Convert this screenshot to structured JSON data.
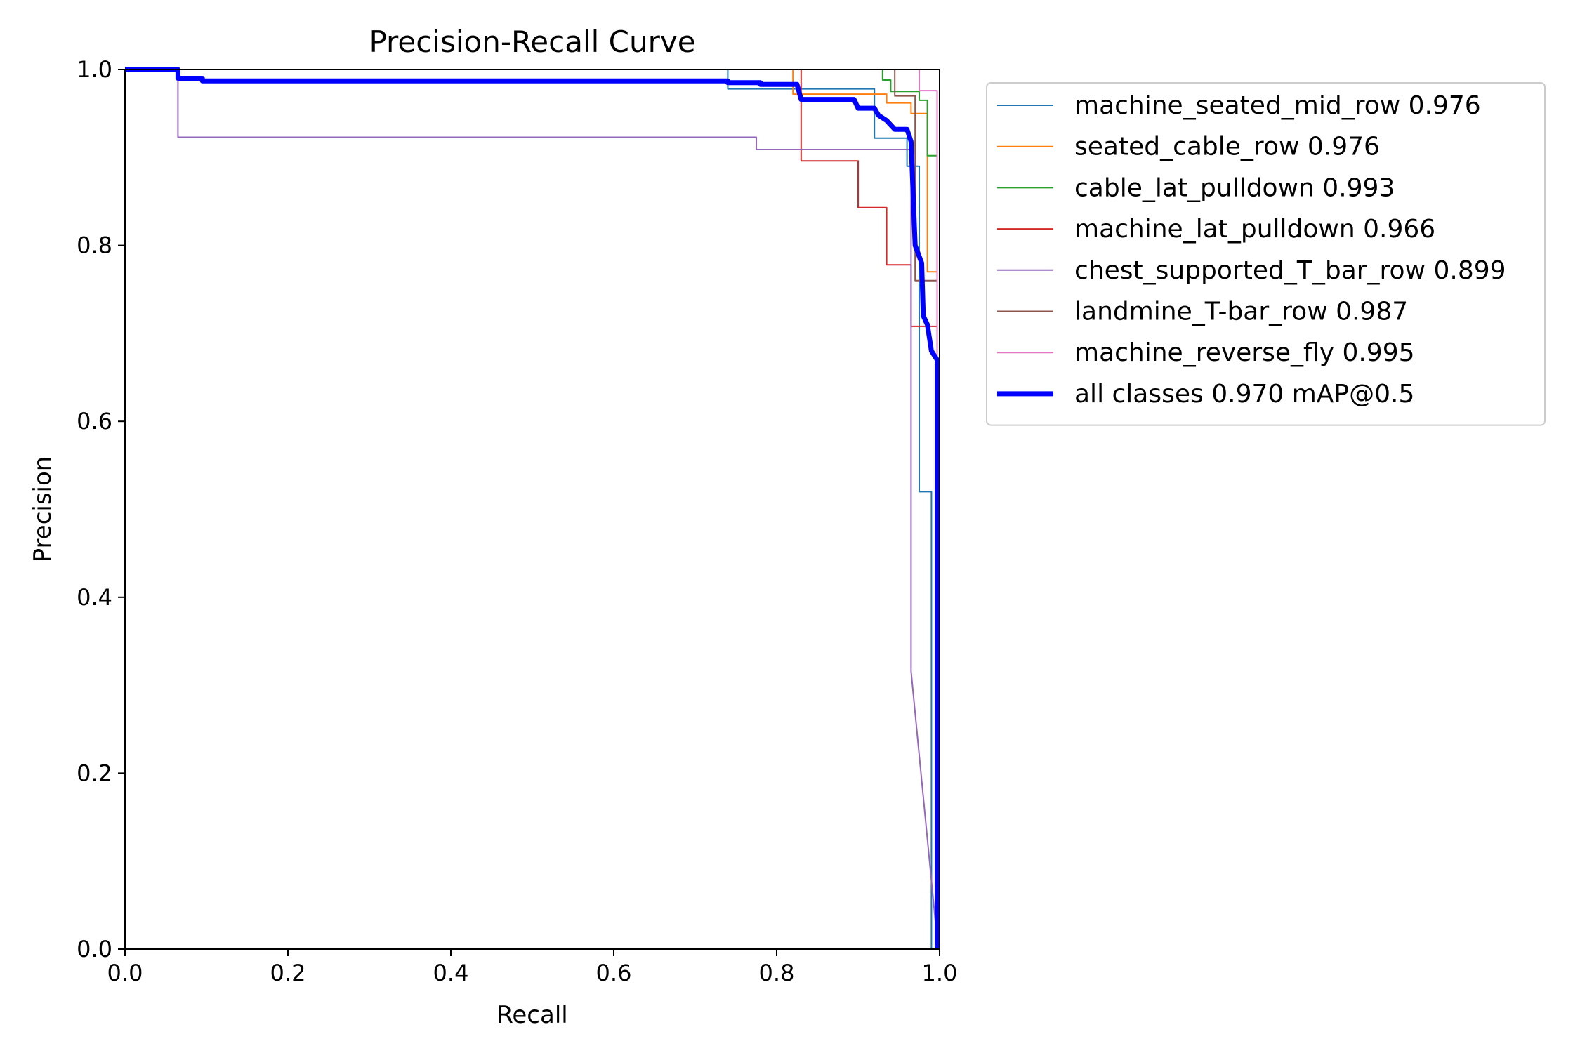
{
  "chart_data": {
    "type": "line",
    "title": "Precision-Recall Curve",
    "xlabel": "Recall",
    "ylabel": "Precision",
    "xlim": [
      0,
      1
    ],
    "ylim": [
      0,
      1
    ],
    "xticks": [
      "0.0",
      "0.2",
      "0.4",
      "0.6",
      "0.8",
      "1.0"
    ],
    "yticks": [
      "0.0",
      "0.2",
      "0.4",
      "0.6",
      "0.8",
      "1.0"
    ],
    "grid": false,
    "legend_position": "outside-top-right",
    "series": [
      {
        "name": "machine_seated_mid_row 0.976",
        "color": "#1f77b4",
        "width": "thin",
        "points": [
          [
            0,
            1
          ],
          [
            0.74,
            1
          ],
          [
            0.74,
            0.978
          ],
          [
            0.92,
            0.978
          ],
          [
            0.92,
            0.922
          ],
          [
            0.96,
            0.922
          ],
          [
            0.96,
            0.89
          ],
          [
            0.975,
            0.89
          ],
          [
            0.975,
            0.52
          ],
          [
            0.99,
            0.52
          ],
          [
            0.99,
            0.0
          ]
        ]
      },
      {
        "name": "seated_cable_row 0.976",
        "color": "#ff7f0e",
        "width": "thin",
        "points": [
          [
            0,
            1
          ],
          [
            0.82,
            1
          ],
          [
            0.82,
            0.972
          ],
          [
            0.935,
            0.972
          ],
          [
            0.935,
            0.962
          ],
          [
            0.965,
            0.962
          ],
          [
            0.965,
            0.95
          ],
          [
            0.985,
            0.95
          ],
          [
            0.985,
            0.77
          ],
          [
            0.997,
            0.77
          ],
          [
            0.997,
            0.0
          ]
        ]
      },
      {
        "name": "cable_lat_pulldown 0.993",
        "color": "#2ca02c",
        "width": "thin",
        "points": [
          [
            0,
            1
          ],
          [
            0.93,
            1
          ],
          [
            0.93,
            0.988
          ],
          [
            0.94,
            0.988
          ],
          [
            0.94,
            0.975
          ],
          [
            0.975,
            0.975
          ],
          [
            0.975,
            0.965
          ],
          [
            0.985,
            0.965
          ],
          [
            0.985,
            0.902
          ],
          [
            0.997,
            0.902
          ],
          [
            0.997,
            0.0
          ]
        ]
      },
      {
        "name": "machine_lat_pulldown 0.966",
        "color": "#d62728",
        "width": "thin",
        "points": [
          [
            0,
            1
          ],
          [
            0.83,
            1
          ],
          [
            0.83,
            0.896
          ],
          [
            0.9,
            0.896
          ],
          [
            0.9,
            0.843
          ],
          [
            0.935,
            0.843
          ],
          [
            0.935,
            0.778
          ],
          [
            0.965,
            0.778
          ],
          [
            0.965,
            0.708
          ],
          [
            0.997,
            0.708
          ],
          [
            0.997,
            0.0
          ]
        ]
      },
      {
        "name": "chest_supported_T_bar_row 0.899",
        "color": "#9467bd",
        "width": "thin",
        "points": [
          [
            0,
            1
          ],
          [
            0.065,
            1
          ],
          [
            0.065,
            0.923
          ],
          [
            0.775,
            0.923
          ],
          [
            0.775,
            0.909
          ],
          [
            0.965,
            0.909
          ],
          [
            0.965,
            0.316
          ],
          [
            0.995,
            0.03
          ],
          [
            0.995,
            0.0
          ]
        ]
      },
      {
        "name": "landmine_T-bar_row 0.987",
        "color": "#8c564b",
        "width": "thin",
        "points": [
          [
            0,
            1
          ],
          [
            0.945,
            1
          ],
          [
            0.945,
            0.97
          ],
          [
            0.97,
            0.97
          ],
          [
            0.97,
            0.76
          ],
          [
            0.997,
            0.76
          ],
          [
            0.997,
            0.0
          ]
        ]
      },
      {
        "name": "machine_reverse_fly 0.995",
        "color": "#e377c2",
        "width": "thin",
        "points": [
          [
            0,
            1
          ],
          [
            0.975,
            1
          ],
          [
            0.975,
            0.976
          ],
          [
            0.997,
            0.976
          ],
          [
            0.997,
            0.0
          ]
        ]
      },
      {
        "name": "all classes 0.970 mAP@0.5",
        "color": "#0000ff",
        "width": "thick",
        "points": [
          [
            0,
            1
          ],
          [
            0.065,
            1
          ],
          [
            0.065,
            0.99
          ],
          [
            0.095,
            0.99
          ],
          [
            0.095,
            0.987
          ],
          [
            0.74,
            0.987
          ],
          [
            0.74,
            0.985
          ],
          [
            0.78,
            0.985
          ],
          [
            0.78,
            0.983
          ],
          [
            0.825,
            0.983
          ],
          [
            0.83,
            0.966
          ],
          [
            0.895,
            0.966
          ],
          [
            0.9,
            0.956
          ],
          [
            0.92,
            0.956
          ],
          [
            0.925,
            0.948
          ],
          [
            0.935,
            0.942
          ],
          [
            0.945,
            0.932
          ],
          [
            0.96,
            0.932
          ],
          [
            0.965,
            0.918
          ],
          [
            0.97,
            0.8
          ],
          [
            0.978,
            0.78
          ],
          [
            0.98,
            0.72
          ],
          [
            0.985,
            0.71
          ],
          [
            0.99,
            0.68
          ],
          [
            0.997,
            0.67
          ],
          [
            0.997,
            0.0
          ]
        ]
      }
    ]
  }
}
